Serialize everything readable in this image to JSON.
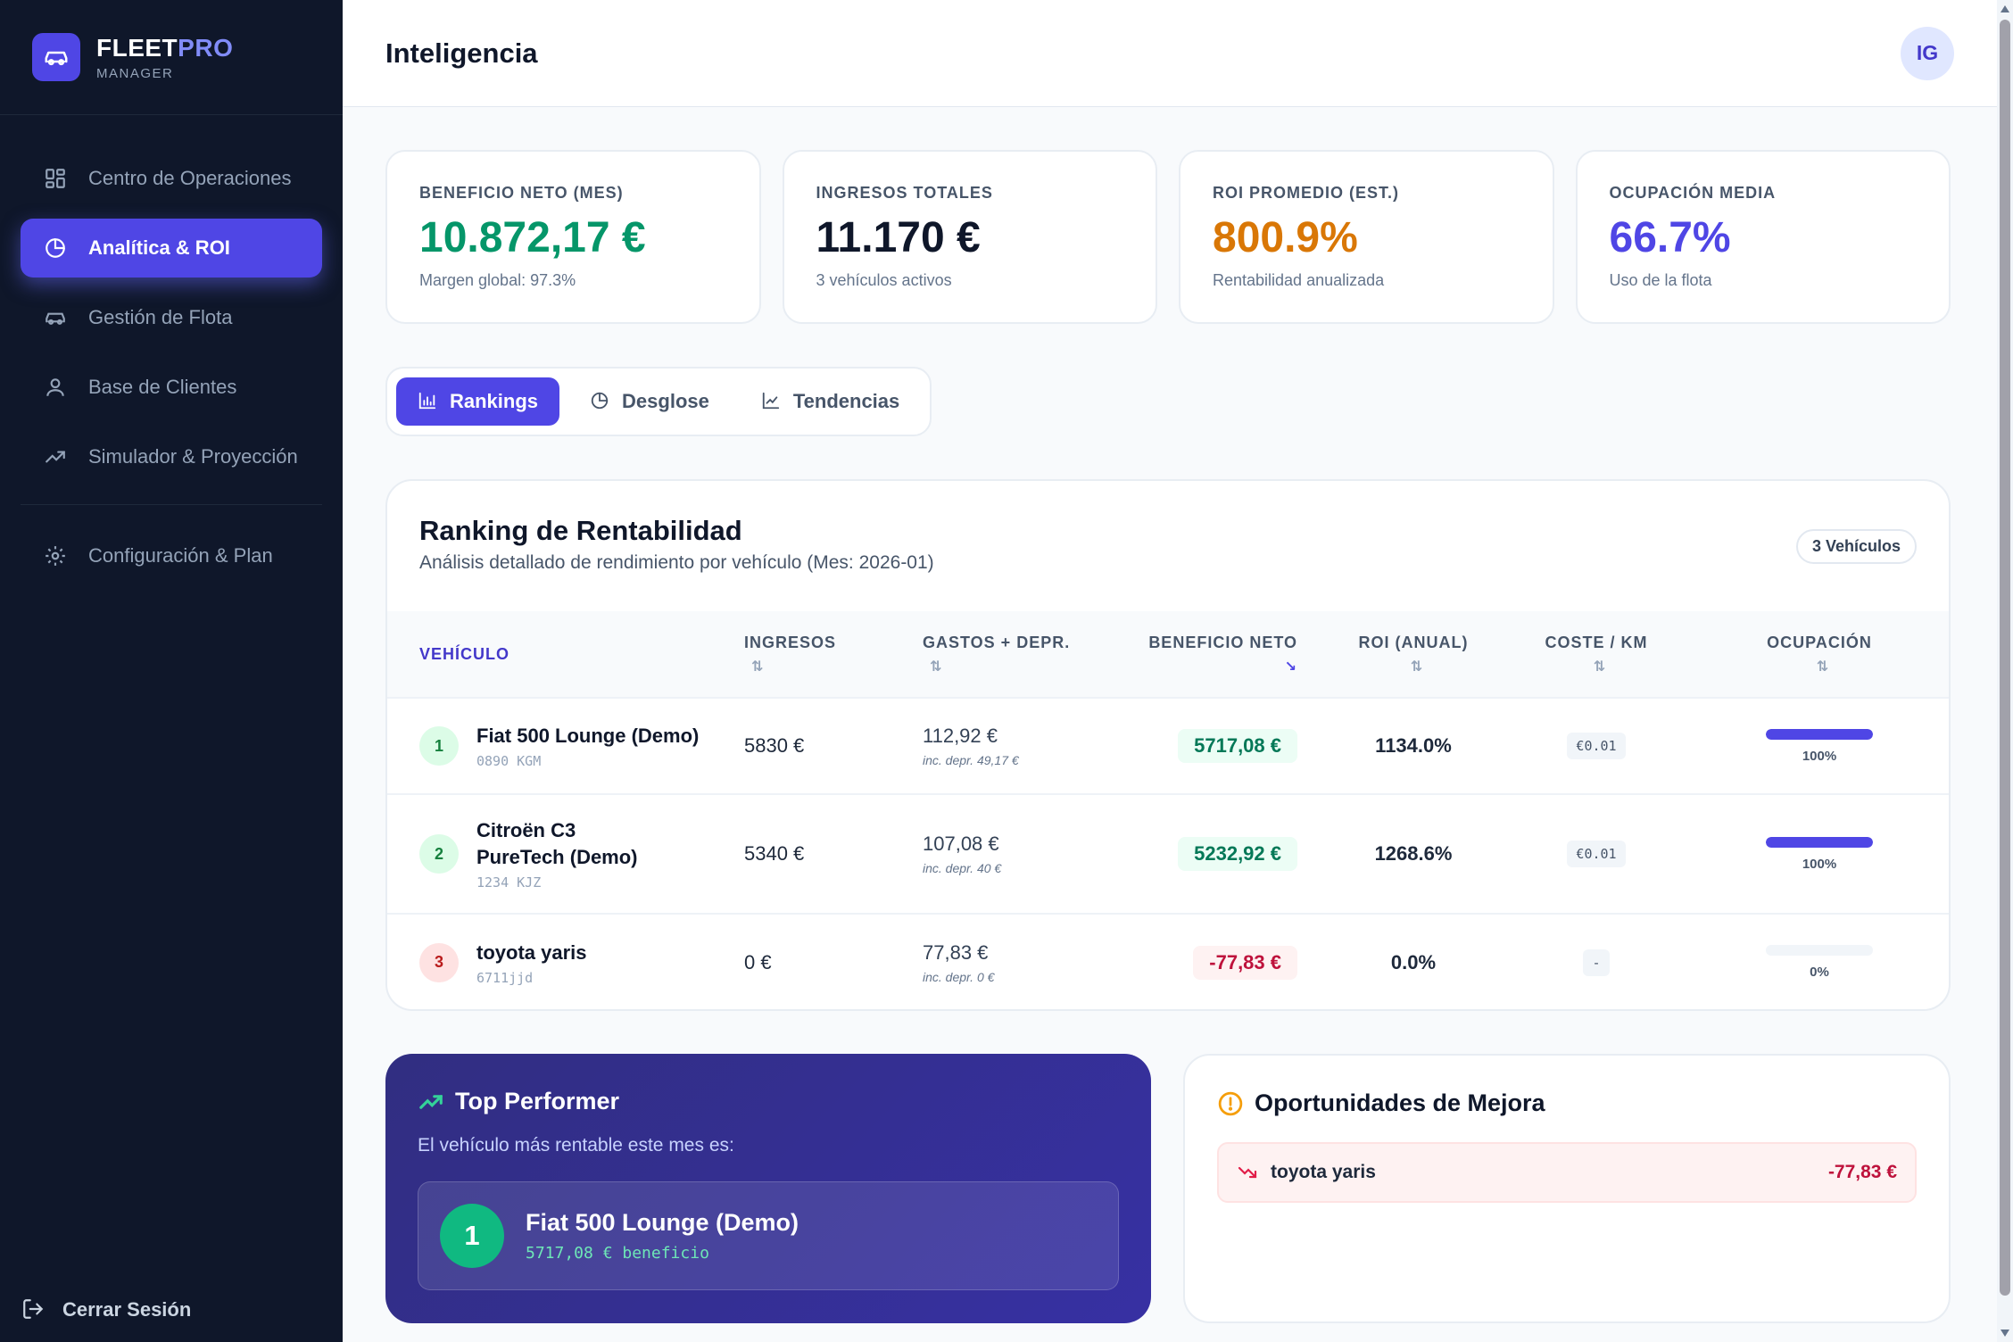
{
  "brand": {
    "name_a": "FLEET",
    "name_b": "PRO",
    "sub": "MANAGER"
  },
  "sidebar": {
    "items": [
      {
        "label": "Centro de Operaciones",
        "icon": "grid-icon"
      },
      {
        "label": "Analítica & ROI",
        "icon": "pie-chart-icon",
        "active": true
      },
      {
        "label": "Gestión de Flota",
        "icon": "car-icon"
      },
      {
        "label": "Base de Clientes",
        "icon": "user-icon"
      },
      {
        "label": "Simulador & Proyección",
        "icon": "trending-up-icon"
      },
      {
        "label": "Configuración & Plan",
        "icon": "gear-icon"
      }
    ],
    "logout": "Cerrar Sesión"
  },
  "header": {
    "title": "Inteligencia",
    "avatar": "IG"
  },
  "kpis": [
    {
      "label": "BENEFICIO NETO (MES)",
      "value": "10.872,17 €",
      "sub": "Margen global: 97.3%",
      "color": "#059669"
    },
    {
      "label": "INGRESOS TOTALES",
      "value": "11.170 €",
      "sub": "3 vehículos activos",
      "color": "#0f172a"
    },
    {
      "label": "ROI PROMEDIO (EST.)",
      "value": "800.9%",
      "sub": "Rentabilidad anualizada",
      "color": "#d97706"
    },
    {
      "label": "OCUPACIÓN MEDIA",
      "value": "66.7%",
      "sub": "Uso de la flota",
      "color": "#4f46e5"
    }
  ],
  "tabs": [
    {
      "label": "Rankings",
      "active": true
    },
    {
      "label": "Desglose"
    },
    {
      "label": "Tendencias"
    }
  ],
  "ranking": {
    "title": "Ranking de Rentabilidad",
    "subtitle": "Análisis detallado de rendimiento por vehículo (Mes: 2026-01)",
    "count": "3 Vehículos",
    "columns": [
      "VEHÍCULO",
      "INGRESOS",
      "GASTOS + DEPR.",
      "BENEFICIO NETO",
      "ROI (ANUAL)",
      "COSTE / KM",
      "OCUPACIÓN"
    ],
    "rows": [
      {
        "rank": "1",
        "name": "Fiat 500 Lounge (Demo)",
        "plate": "0890 KGM",
        "income": "5830 €",
        "expenses": "112,92 €",
        "depr": "inc. depr. 49,17 €",
        "profit": "5717,08 €",
        "roi": "1134.0%",
        "cost_km": "€0.01",
        "occupancy": "100%",
        "occupancy_value": 1.0
      },
      {
        "rank": "2",
        "name": "Citroën C3 PureTech (Demo)",
        "plate": "1234 KJZ",
        "income": "5340 €",
        "expenses": "107,08 €",
        "depr": "inc. depr. 40 €",
        "profit": "5232,92 €",
        "roi": "1268.6%",
        "cost_km": "€0.01",
        "occupancy": "100%",
        "occupancy_value": 1.0
      },
      {
        "rank": "3",
        "name": "toyota yaris",
        "plate": "6711jjd",
        "income": "0 €",
        "expenses": "77,83 €",
        "depr": "inc. depr. 0 €",
        "profit": "-77,83 €",
        "roi": "0.0%",
        "cost_km": "-",
        "occupancy": "0%",
        "occupancy_value": 0.0
      }
    ]
  },
  "top_performer": {
    "title": "Top Performer",
    "subtitle": "El vehículo más rentable este mes es:",
    "rank": "1",
    "name": "Fiat 500 Lounge (Demo)",
    "value": "5717,08 € beneficio"
  },
  "opportunities": {
    "title": "Oportunidades de Mejora",
    "items": [
      {
        "name": "toyota yaris",
        "value": "-77,83 €"
      }
    ]
  }
}
